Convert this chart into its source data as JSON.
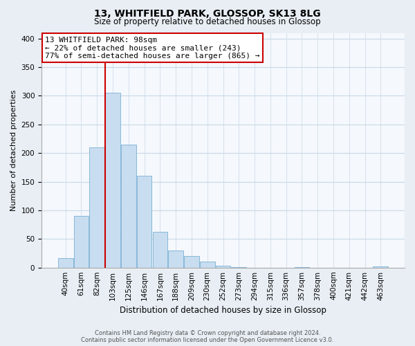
{
  "title": "13, WHITFIELD PARK, GLOSSOP, SK13 8LG",
  "subtitle": "Size of property relative to detached houses in Glossop",
  "xlabel": "Distribution of detached houses by size in Glossop",
  "ylabel": "Number of detached properties",
  "bar_color": "#c8ddf0",
  "bar_edge_color": "#7ab0d4",
  "categories": [
    "40sqm",
    "61sqm",
    "82sqm",
    "103sqm",
    "125sqm",
    "146sqm",
    "167sqm",
    "188sqm",
    "209sqm",
    "230sqm",
    "252sqm",
    "273sqm",
    "294sqm",
    "315sqm",
    "336sqm",
    "357sqm",
    "378sqm",
    "400sqm",
    "421sqm",
    "442sqm",
    "463sqm"
  ],
  "values": [
    17,
    90,
    210,
    305,
    215,
    160,
    63,
    30,
    20,
    10,
    3,
    1,
    0,
    0,
    0,
    1,
    0,
    0,
    0,
    0,
    2
  ],
  "vline_x_index": 3,
  "vline_color": "#cc0000",
  "annotation_title": "13 WHITFIELD PARK: 98sqm",
  "annotation_line1": "← 22% of detached houses are smaller (243)",
  "annotation_line2": "77% of semi-detached houses are larger (865) →",
  "annotation_box_color": "#ffffff",
  "annotation_box_edge": "#cc0000",
  "ylim": [
    0,
    410
  ],
  "yticks": [
    0,
    50,
    100,
    150,
    200,
    250,
    300,
    350,
    400
  ],
  "footer_line1": "Contains HM Land Registry data © Crown copyright and database right 2024.",
  "footer_line2": "Contains public sector information licensed under the Open Government Licence v3.0.",
  "background_color": "#e8eef4",
  "plot_bg_color": "#f5f8fc",
  "grid_color": "#c8d8e8",
  "title_fontsize": 10,
  "subtitle_fontsize": 8.5,
  "ylabel_fontsize": 8,
  "xlabel_fontsize": 8.5,
  "tick_fontsize": 7.5,
  "footer_fontsize": 6,
  "annot_fontsize": 8
}
